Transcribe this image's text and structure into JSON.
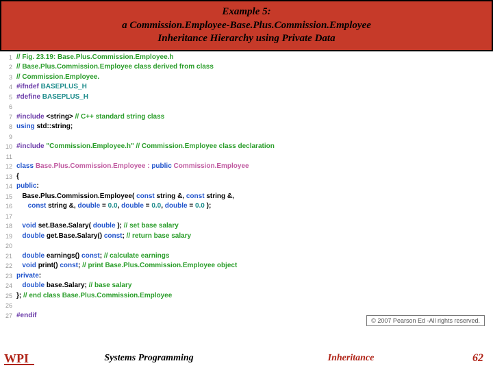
{
  "header": {
    "line1": "Example 5:",
    "line2": "a Commission.Employee-Base.Plus.Commission.Employee",
    "line3": "Inheritance Hierarchy using Private Data",
    "bg_color": "#c63a29",
    "text_color": "#000000",
    "font_style": "italic bold"
  },
  "code": {
    "lines": [
      {
        "n": "1",
        "tokens": [
          {
            "t": "// Fig. 23.19: Base.Plus.Commission.Employee.h",
            "c": "comment"
          }
        ]
      },
      {
        "n": "2",
        "tokens": [
          {
            "t": "// Base.Plus.Commission.Employee class derived from class",
            "c": "comment"
          }
        ]
      },
      {
        "n": "3",
        "tokens": [
          {
            "t": "// Commission.Employee.",
            "c": "comment"
          }
        ]
      },
      {
        "n": "4",
        "tokens": [
          {
            "t": "#ifndef ",
            "c": "pp"
          },
          {
            "t": "BASEPLUS_H",
            "c": "ppval"
          }
        ]
      },
      {
        "n": "5",
        "tokens": [
          {
            "t": "#define ",
            "c": "pp"
          },
          {
            "t": "BASEPLUS_H",
            "c": "ppval"
          }
        ]
      },
      {
        "n": "6",
        "tokens": []
      },
      {
        "n": "7",
        "tokens": [
          {
            "t": "#include ",
            "c": "pp"
          },
          {
            "t": "<string>",
            "c": "plain"
          },
          {
            "t": " // C++ standard string class",
            "c": "comment"
          }
        ]
      },
      {
        "n": "8",
        "tokens": [
          {
            "t": "using ",
            "c": "keyword"
          },
          {
            "t": "std::string;",
            "c": "plain"
          }
        ]
      },
      {
        "n": "9",
        "tokens": []
      },
      {
        "n": "10",
        "tokens": [
          {
            "t": "#include ",
            "c": "pp"
          },
          {
            "t": "\"Commission.Employee.h\"",
            "c": "string"
          },
          {
            "t": " // Commission.Employee class declaration",
            "c": "comment"
          }
        ]
      },
      {
        "n": "11",
        "tokens": []
      },
      {
        "n": "12",
        "tokens": [
          {
            "t": "class ",
            "c": "keyword"
          },
          {
            "t": "Base.Plus.Commission.Employee : ",
            "c": "type"
          },
          {
            "t": "public ",
            "c": "keyword"
          },
          {
            "t": "Commission.Employee",
            "c": "type"
          }
        ]
      },
      {
        "n": "13",
        "tokens": [
          {
            "t": "{",
            "c": "plain"
          }
        ]
      },
      {
        "n": "14",
        "tokens": [
          {
            "t": "public",
            "c": "keyword"
          },
          {
            "t": ":",
            "c": "plain"
          }
        ]
      },
      {
        "n": "15",
        "tokens": [
          {
            "t": "   Base.Plus.Commission.Employee( ",
            "c": "plain"
          },
          {
            "t": "const ",
            "c": "keyword"
          },
          {
            "t": "string &, ",
            "c": "plain"
          },
          {
            "t": "const ",
            "c": "keyword"
          },
          {
            "t": "string &,",
            "c": "plain"
          }
        ]
      },
      {
        "n": "16",
        "tokens": [
          {
            "t": "      ",
            "c": "plain"
          },
          {
            "t": "const ",
            "c": "keyword"
          },
          {
            "t": "string &, ",
            "c": "plain"
          },
          {
            "t": "double",
            "c": "keyword"
          },
          {
            "t": " = ",
            "c": "plain"
          },
          {
            "t": "0.0",
            "c": "num"
          },
          {
            "t": ", ",
            "c": "plain"
          },
          {
            "t": "double",
            "c": "keyword"
          },
          {
            "t": " = ",
            "c": "plain"
          },
          {
            "t": "0.0",
            "c": "num"
          },
          {
            "t": ", ",
            "c": "plain"
          },
          {
            "t": "double",
            "c": "keyword"
          },
          {
            "t": " = ",
            "c": "plain"
          },
          {
            "t": "0.0",
            "c": "num"
          },
          {
            "t": " );",
            "c": "plain"
          }
        ]
      },
      {
        "n": "17",
        "tokens": []
      },
      {
        "n": "18",
        "tokens": [
          {
            "t": "   ",
            "c": "plain"
          },
          {
            "t": "void ",
            "c": "keyword"
          },
          {
            "t": "set.Base.Salary( ",
            "c": "plain"
          },
          {
            "t": "double ",
            "c": "keyword"
          },
          {
            "t": "); ",
            "c": "plain"
          },
          {
            "t": "// set base salary",
            "c": "comment"
          }
        ]
      },
      {
        "n": "19",
        "tokens": [
          {
            "t": "   ",
            "c": "plain"
          },
          {
            "t": "double ",
            "c": "keyword"
          },
          {
            "t": "get.Base.Salary() ",
            "c": "plain"
          },
          {
            "t": "const",
            "c": "keyword"
          },
          {
            "t": "; ",
            "c": "plain"
          },
          {
            "t": "// return base salary",
            "c": "comment"
          }
        ]
      },
      {
        "n": "20",
        "tokens": []
      },
      {
        "n": "21",
        "tokens": [
          {
            "t": "   ",
            "c": "plain"
          },
          {
            "t": "double ",
            "c": "keyword"
          },
          {
            "t": "earnings() ",
            "c": "plain"
          },
          {
            "t": "const",
            "c": "keyword"
          },
          {
            "t": "; ",
            "c": "plain"
          },
          {
            "t": "// calculate earnings",
            "c": "comment"
          }
        ]
      },
      {
        "n": "22",
        "tokens": [
          {
            "t": "   ",
            "c": "plain"
          },
          {
            "t": "void ",
            "c": "keyword"
          },
          {
            "t": "print() ",
            "c": "plain"
          },
          {
            "t": "const",
            "c": "keyword"
          },
          {
            "t": "; ",
            "c": "plain"
          },
          {
            "t": "// print Base.Plus.Commission.Employee object",
            "c": "comment"
          }
        ]
      },
      {
        "n": "23",
        "tokens": [
          {
            "t": "private",
            "c": "keyword"
          },
          {
            "t": ":",
            "c": "plain"
          }
        ]
      },
      {
        "n": "24",
        "tokens": [
          {
            "t": "   ",
            "c": "plain"
          },
          {
            "t": "double ",
            "c": "keyword"
          },
          {
            "t": "base.Salary; ",
            "c": "plain"
          },
          {
            "t": "// base salary",
            "c": "comment"
          }
        ]
      },
      {
        "n": "25",
        "tokens": [
          {
            "t": "}; ",
            "c": "plain"
          },
          {
            "t": "// end class Base.Plus.Commission.Employee",
            "c": "comment"
          }
        ]
      },
      {
        "n": "26",
        "tokens": []
      },
      {
        "n": "27",
        "tokens": [
          {
            "t": "#endif",
            "c": "pp"
          }
        ]
      }
    ],
    "colors": {
      "comment": "#2a9d2a",
      "pp": "#6a3aa8",
      "ppval": "#1a8a8a",
      "keyword": "#2255cc",
      "type": "#c05aa0",
      "plain": "#000000",
      "string": "#2a9d2a",
      "num": "#1a8a8a",
      "lineno": "#999999"
    }
  },
  "copyright": "© 2007 Pearson Ed -All rights reserved.",
  "footer": {
    "left": "Systems Programming",
    "mid": "Inheritance",
    "page": "62",
    "logo_color": "#b02418"
  }
}
